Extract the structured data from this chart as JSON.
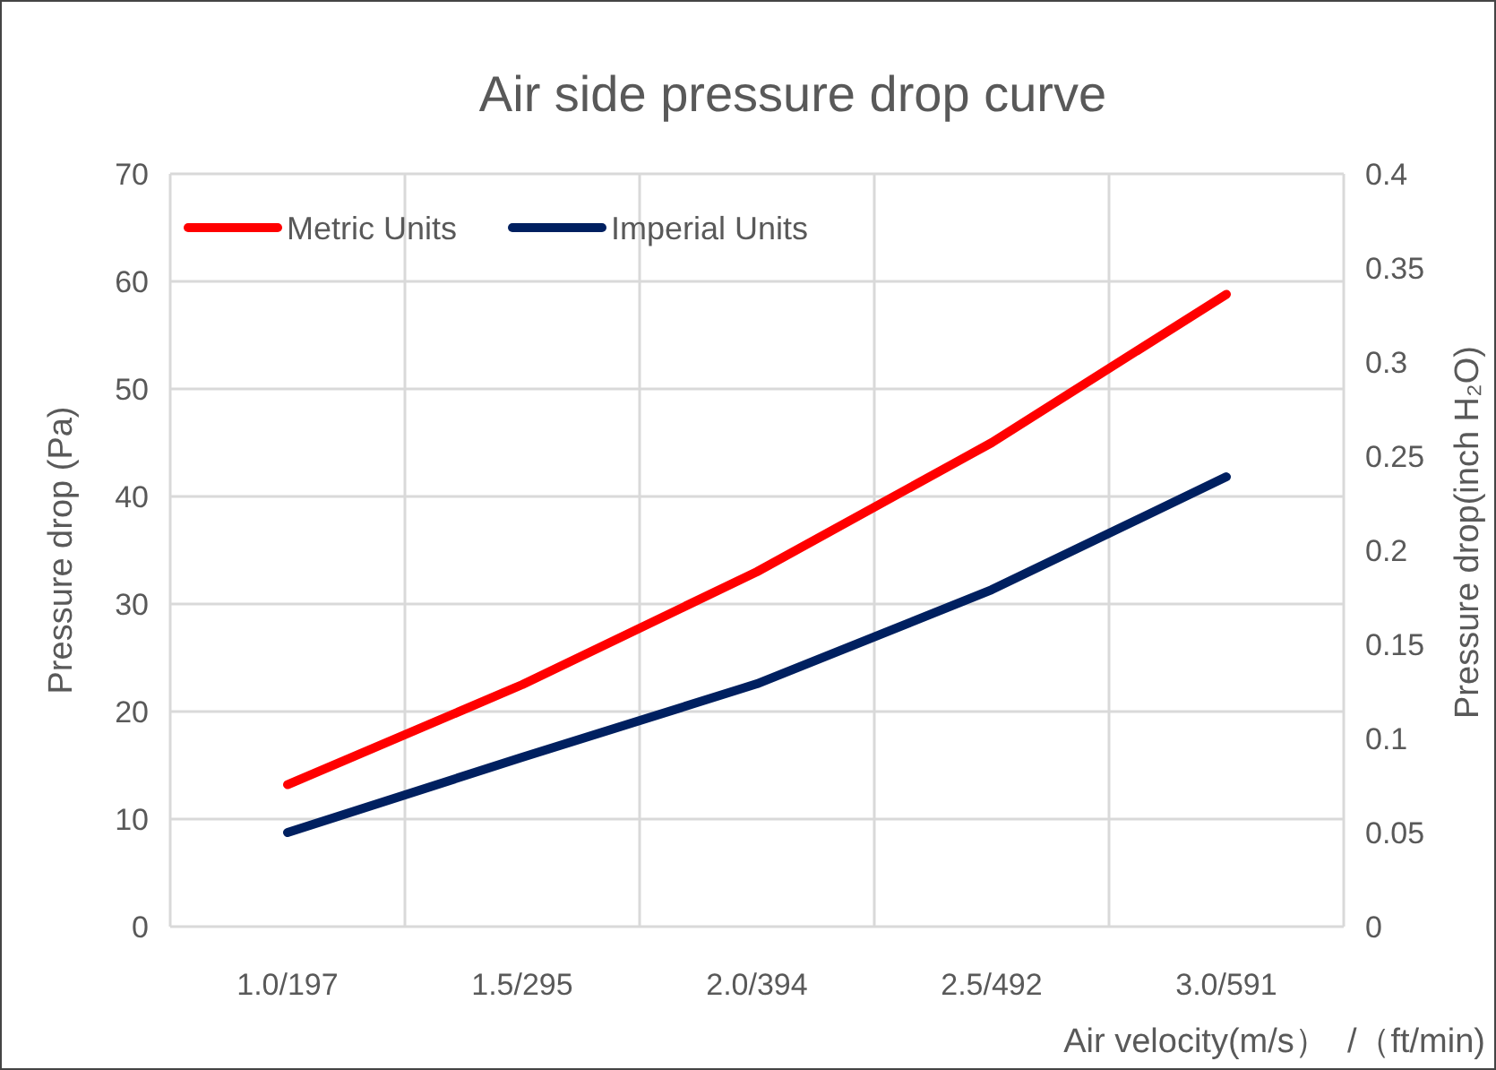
{
  "chart_data": {
    "type": "line",
    "title": "Air side pressure drop curve",
    "xlabel": "Air velocity(m/s）  /（ft/min)",
    "ylabel": "Pressure drop (Pa)",
    "y2label": "Pressure drop(inch H₂O)",
    "categories": [
      "1.0/197",
      "1.5/295",
      "2.0/394",
      "2.5/492",
      "3.0/591"
    ],
    "series": [
      {
        "name": "Metric Units",
        "color": "#ff0000",
        "values": [
          13.2,
          22.5,
          33,
          45,
          58.8
        ]
      },
      {
        "name": "Imperial Units",
        "color": "#002060",
        "axis": "y2",
        "values": [
          0.05,
          0.09,
          0.129,
          0.179,
          0.239
        ]
      }
    ],
    "ylim": [
      0,
      70
    ],
    "yticks": [
      0,
      10,
      20,
      30,
      40,
      50,
      60,
      70
    ],
    "y2lim": [
      0,
      0.4
    ],
    "y2ticks": [
      0,
      0.05,
      0.1,
      0.15,
      0.2,
      0.25,
      0.3,
      0.35,
      0.4
    ],
    "grid": true,
    "legend": "top left",
    "marker": "none",
    "line_style": "solid"
  }
}
